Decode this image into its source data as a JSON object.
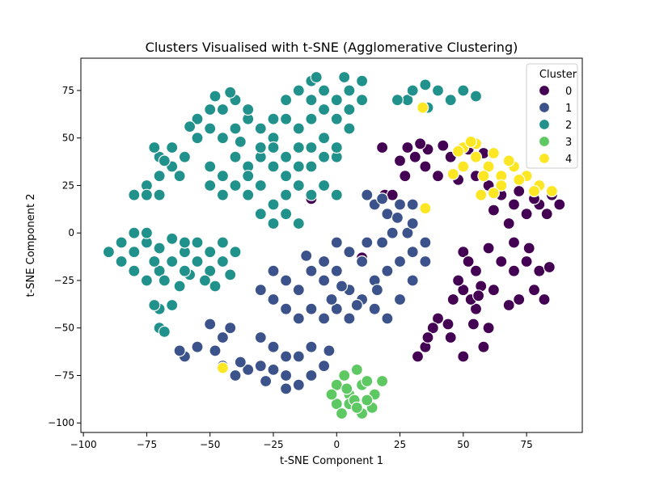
{
  "chart_data": {
    "type": "scatter",
    "title": "Clusters Visualised with t-SNE (Agglomerative Clustering)",
    "xlabel": "t-SNE Component 1",
    "ylabel": "t-SNE Component 2",
    "xlim": [
      -101,
      97
    ],
    "ylim": [
      -105,
      92
    ],
    "xticks": [
      -100,
      -75,
      -50,
      -25,
      0,
      25,
      50,
      75
    ],
    "yticks": [
      -100,
      -75,
      -50,
      -25,
      0,
      25,
      50,
      75
    ],
    "grid": false,
    "legend": {
      "title": "Cluster",
      "position": "top-right"
    },
    "series": [
      {
        "name": "0",
        "color": "#440154",
        "points": [
          [
            -10,
            18
          ],
          [
            19,
            20
          ],
          [
            20,
            10
          ],
          [
            22,
            20
          ],
          [
            28,
            45
          ],
          [
            31,
            40
          ],
          [
            35,
            35
          ],
          [
            40,
            30
          ],
          [
            45,
            40
          ],
          [
            50,
            35
          ],
          [
            55,
            30
          ],
          [
            18,
            45
          ],
          [
            25,
            38
          ],
          [
            42,
            46
          ],
          [
            48,
            28
          ],
          [
            36,
            44
          ],
          [
            27,
            30
          ],
          [
            33,
            47
          ],
          [
            52,
            44
          ],
          [
            58,
            42
          ],
          [
            60,
            25
          ],
          [
            65,
            20
          ],
          [
            70,
            15
          ],
          [
            75,
            10
          ],
          [
            80,
            15
          ],
          [
            85,
            20
          ],
          [
            68,
            5
          ],
          [
            72,
            22
          ],
          [
            78,
            18
          ],
          [
            88,
            15
          ],
          [
            62,
            12
          ],
          [
            83,
            10
          ],
          [
            50,
            -10
          ],
          [
            55,
            -20
          ],
          [
            50,
            -30
          ],
          [
            55,
            -40
          ],
          [
            60,
            -50
          ],
          [
            58,
            -60
          ],
          [
            50,
            -65
          ],
          [
            45,
            -55
          ],
          [
            40,
            -45
          ],
          [
            38,
            -50
          ],
          [
            35,
            -60
          ],
          [
            32,
            -65
          ],
          [
            52,
            -15
          ],
          [
            57,
            -28
          ],
          [
            48,
            -25
          ],
          [
            53,
            -35
          ],
          [
            46,
            -35
          ],
          [
            62,
            -30
          ],
          [
            65,
            -15
          ],
          [
            70,
            -5
          ],
          [
            75,
            -15
          ],
          [
            80,
            -20
          ],
          [
            78,
            -30
          ],
          [
            72,
            -35
          ],
          [
            68,
            -38
          ],
          [
            82,
            -35
          ],
          [
            84,
            -18
          ],
          [
            76,
            -8
          ],
          [
            70,
            -20
          ],
          [
            60,
            -8
          ],
          [
            10,
            -13
          ],
          [
            56,
            -33
          ],
          [
            44,
            -48
          ],
          [
            36,
            -55
          ],
          [
            54,
            -48
          ]
        ]
      },
      {
        "name": "1",
        "color": "#3b528b",
        "points": [
          [
            -30,
            -30
          ],
          [
            -25,
            -20
          ],
          [
            -20,
            -25
          ],
          [
            -15,
            -30
          ],
          [
            -10,
            -20
          ],
          [
            -5,
            -25
          ],
          [
            0,
            -20
          ],
          [
            5,
            -30
          ],
          [
            10,
            -35
          ],
          [
            15,
            -25
          ],
          [
            20,
            -20
          ],
          [
            25,
            -15
          ],
          [
            30,
            -10
          ],
          [
            35,
            -5
          ],
          [
            15,
            -40
          ],
          [
            20,
            -45
          ],
          [
            -10,
            -40
          ],
          [
            -5,
            -45
          ],
          [
            0,
            -40
          ],
          [
            10,
            -15
          ],
          [
            5,
            -10
          ],
          [
            0,
            -5
          ],
          [
            -5,
            -15
          ],
          [
            -20,
            -40
          ],
          [
            -15,
            -45
          ],
          [
            -25,
            -35
          ],
          [
            30,
            -25
          ],
          [
            35,
            -15
          ],
          [
            25,
            -35
          ],
          [
            5,
            -45
          ],
          [
            18,
            -5
          ],
          [
            22,
            0
          ],
          [
            12,
            -5
          ],
          [
            28,
            0
          ],
          [
            8,
            -38
          ],
          [
            16,
            -30
          ],
          [
            -12,
            -12
          ],
          [
            2,
            -28
          ],
          [
            -2,
            -35
          ],
          [
            30,
            5
          ],
          [
            -50,
            -48
          ],
          [
            -45,
            -55
          ],
          [
            -48,
            -62
          ],
          [
            -42,
            -50
          ],
          [
            -60,
            -65
          ],
          [
            -55,
            -60
          ],
          [
            -62,
            -62
          ],
          [
            -30,
            -55
          ],
          [
            -25,
            -60
          ],
          [
            -20,
            -65
          ],
          [
            -15,
            -65
          ],
          [
            -10,
            -60
          ],
          [
            -5,
            -70
          ],
          [
            -20,
            -75
          ],
          [
            -25,
            -72
          ],
          [
            -30,
            -70
          ],
          [
            -35,
            -72
          ],
          [
            -40,
            -75
          ],
          [
            -45,
            -70
          ],
          [
            -10,
            -75
          ],
          [
            -15,
            -80
          ],
          [
            -20,
            -82
          ],
          [
            -28,
            -78
          ],
          [
            -3,
            -62
          ],
          [
            -38,
            -68
          ],
          [
            15,
            15
          ],
          [
            20,
            10
          ],
          [
            25,
            15
          ],
          [
            30,
            15
          ],
          [
            12,
            20
          ],
          [
            18,
            18
          ],
          [
            24,
            8
          ]
        ]
      },
      {
        "name": "2",
        "color": "#21918c",
        "points": [
          [
            -55,
            60
          ],
          [
            -50,
            55
          ],
          [
            -45,
            50
          ],
          [
            -40,
            55
          ],
          [
            -35,
            60
          ],
          [
            -30,
            55
          ],
          [
            -25,
            50
          ],
          [
            -45,
            65
          ],
          [
            -40,
            70
          ],
          [
            -35,
            65
          ],
          [
            -50,
            65
          ],
          [
            -55,
            50
          ],
          [
            -48,
            72
          ],
          [
            -42,
            74
          ],
          [
            -58,
            56
          ],
          [
            -38,
            48
          ],
          [
            -75,
            25
          ],
          [
            -70,
            30
          ],
          [
            -65,
            35
          ],
          [
            -70,
            40
          ],
          [
            -65,
            45
          ],
          [
            -75,
            20
          ],
          [
            -80,
            20
          ],
          [
            -70,
            20
          ],
          [
            -60,
            40
          ],
          [
            -62,
            30
          ],
          [
            -72,
            45
          ],
          [
            -68,
            38
          ],
          [
            -50,
            25
          ],
          [
            -45,
            20
          ],
          [
            -40,
            25
          ],
          [
            -35,
            20
          ],
          [
            -30,
            25
          ],
          [
            -25,
            15
          ],
          [
            -20,
            20
          ],
          [
            -15,
            25
          ],
          [
            -10,
            20
          ],
          [
            -5,
            25
          ],
          [
            0,
            20
          ],
          [
            -25,
            5
          ],
          [
            -20,
            10
          ],
          [
            -30,
            10
          ],
          [
            -15,
            5
          ],
          [
            -45,
            30
          ],
          [
            -50,
            35
          ],
          [
            -40,
            40
          ],
          [
            -35,
            35
          ],
          [
            -30,
            40
          ],
          [
            -25,
            35
          ],
          [
            -20,
            40
          ],
          [
            -15,
            45
          ],
          [
            -10,
            35
          ],
          [
            -5,
            40
          ],
          [
            0,
            40
          ],
          [
            -10,
            45
          ],
          [
            -5,
            50
          ],
          [
            0,
            45
          ],
          [
            -30,
            45
          ],
          [
            -35,
            30
          ],
          [
            -20,
            30
          ],
          [
            -25,
            45
          ],
          [
            -15,
            35
          ],
          [
            -20,
            70
          ],
          [
            -15,
            75
          ],
          [
            -10,
            80
          ],
          [
            -5,
            75
          ],
          [
            0,
            70
          ],
          [
            5,
            75
          ],
          [
            10,
            80
          ],
          [
            -20,
            60
          ],
          [
            -15,
            55
          ],
          [
            -10,
            60
          ],
          [
            -5,
            65
          ],
          [
            0,
            60
          ],
          [
            5,
            65
          ],
          [
            10,
            70
          ],
          [
            -25,
            60
          ],
          [
            -10,
            70
          ],
          [
            5,
            55
          ],
          [
            3,
            82
          ],
          [
            -8,
            82
          ],
          [
            28,
            70
          ],
          [
            30,
            75
          ],
          [
            35,
            78
          ],
          [
            40,
            75
          ],
          [
            45,
            70
          ],
          [
            50,
            75
          ],
          [
            55,
            72
          ],
          [
            -90,
            -10
          ],
          [
            -85,
            -15
          ],
          [
            -80,
            -20
          ],
          [
            -75,
            -25
          ],
          [
            -70,
            -20
          ],
          [
            -65,
            -15
          ],
          [
            -60,
            -10
          ],
          [
            -55,
            -15
          ],
          [
            -50,
            -20
          ],
          [
            -45,
            -15
          ],
          [
            -85,
            -5
          ],
          [
            -80,
            -10
          ],
          [
            -75,
            -5
          ],
          [
            -70,
            -8
          ],
          [
            -65,
            -3
          ],
          [
            -60,
            -5
          ],
          [
            -55,
            -5
          ],
          [
            -50,
            -10
          ],
          [
            -45,
            -5
          ],
          [
            -40,
            -10
          ],
          [
            -80,
            0
          ],
          [
            -75,
            0
          ],
          [
            -72,
            -15
          ],
          [
            -68,
            -25
          ],
          [
            -62,
            -28
          ],
          [
            -58,
            -22
          ],
          [
            -52,
            -25
          ],
          [
            -48,
            -28
          ],
          [
            -42,
            -22
          ],
          [
            -60,
            -20
          ],
          [
            -70,
            -40
          ],
          [
            -65,
            -38
          ],
          [
            -72,
            -38
          ],
          [
            -70,
            -50
          ],
          [
            -68,
            -52
          ],
          [
            24,
            70
          ],
          [
            36,
            66
          ]
        ]
      },
      {
        "name": "3",
        "color": "#5ec962",
        "points": [
          [
            0,
            -80
          ],
          [
            5,
            -85
          ],
          [
            10,
            -80
          ],
          [
            15,
            -85
          ],
          [
            5,
            -90
          ],
          [
            10,
            -95
          ],
          [
            0,
            -90
          ],
          [
            3,
            -75
          ],
          [
            8,
            -72
          ],
          [
            12,
            -78
          ],
          [
            18,
            -78
          ],
          [
            2,
            -95
          ],
          [
            14,
            -92
          ],
          [
            7,
            -88
          ],
          [
            -2,
            -85
          ],
          [
            12,
            -88
          ],
          [
            4,
            -82
          ],
          [
            8,
            -92
          ]
        ]
      },
      {
        "name": "4",
        "color": "#fde725",
        "points": [
          [
            50,
            45
          ],
          [
            55,
            40
          ],
          [
            60,
            35
          ],
          [
            65,
            30
          ],
          [
            70,
            35
          ],
          [
            75,
            30
          ],
          [
            80,
            25
          ],
          [
            55,
            47
          ],
          [
            62,
            42
          ],
          [
            68,
            38
          ],
          [
            72,
            28
          ],
          [
            78,
            22
          ],
          [
            50,
            35
          ],
          [
            58,
            30
          ],
          [
            65,
            25
          ],
          [
            85,
            22
          ],
          [
            57,
            20
          ],
          [
            62,
            21
          ],
          [
            48,
            43
          ],
          [
            53,
            48
          ],
          [
            -45,
            -71
          ],
          [
            35,
            13
          ],
          [
            34,
            66
          ],
          [
            46,
            31
          ]
        ]
      }
    ]
  }
}
